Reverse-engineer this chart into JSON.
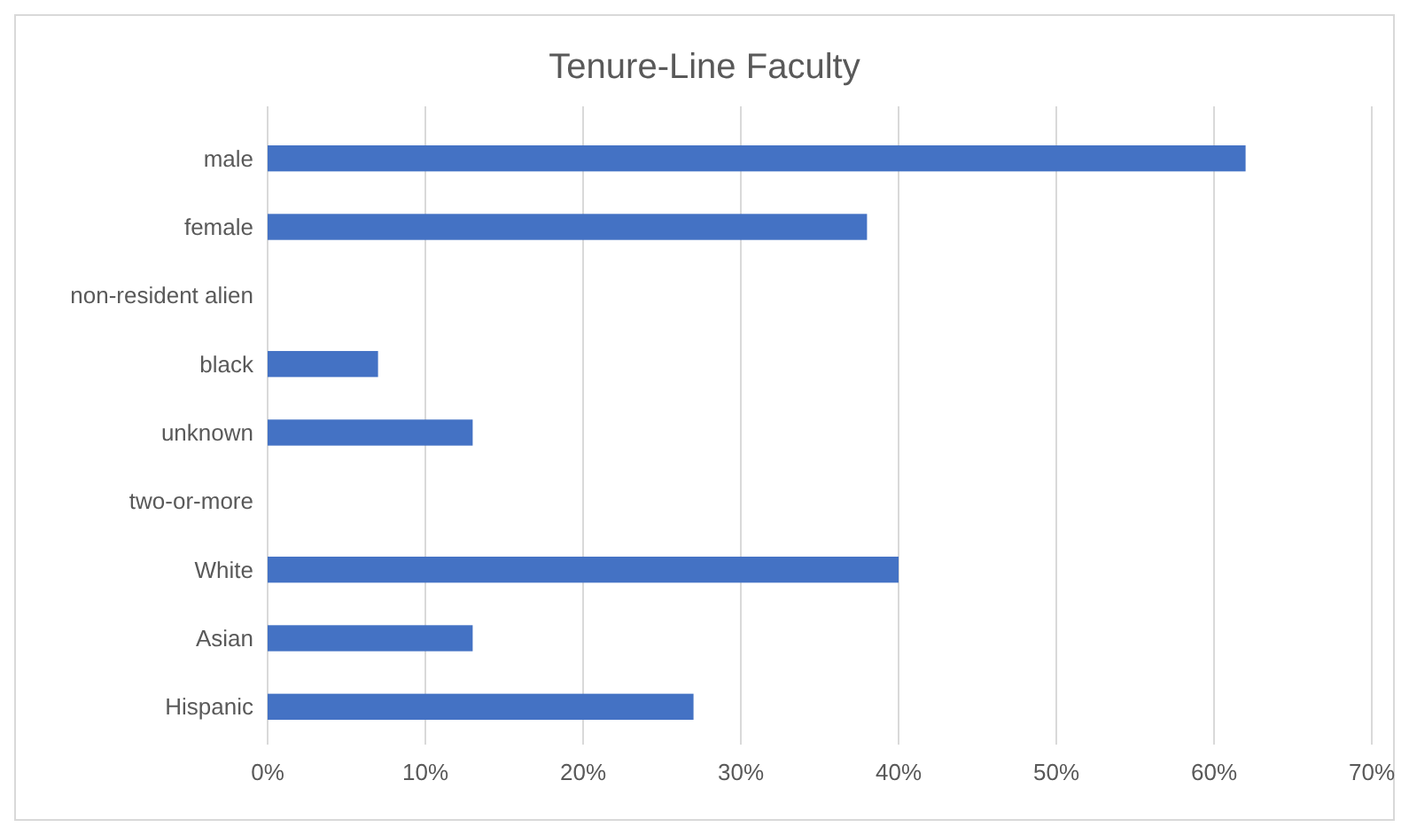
{
  "chart_data": {
    "type": "bar",
    "orientation": "horizontal",
    "title": "Tenure-Line Faculty",
    "categories": [
      "male",
      "female",
      "non-resident alien",
      "black",
      "unknown",
      "two-or-more",
      "White",
      "Asian",
      "Hispanic"
    ],
    "values": [
      62,
      38,
      0,
      7,
      13,
      0,
      40,
      13,
      27
    ],
    "color": "#4472c4",
    "xlim": [
      0,
      70
    ],
    "xticks": [
      {
        "value": 0,
        "label": "0%"
      },
      {
        "value": 10,
        "label": "10%"
      },
      {
        "value": 20,
        "label": "20%"
      },
      {
        "value": 30,
        "label": "30%"
      },
      {
        "value": 40,
        "label": "40%"
      },
      {
        "value": 50,
        "label": "50%"
      },
      {
        "value": 60,
        "label": "60%"
      },
      {
        "value": 70,
        "label": "70%"
      }
    ],
    "grid": "x"
  }
}
